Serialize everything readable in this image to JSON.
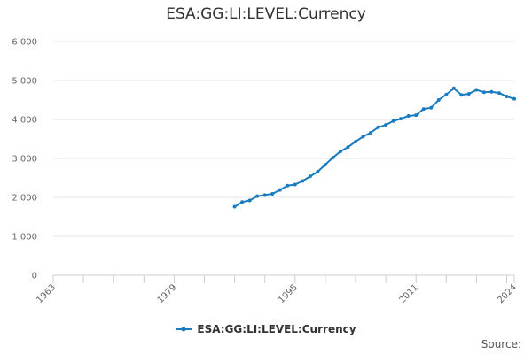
{
  "chart_data": {
    "type": "line",
    "title": "ESA:GG:LI:LEVEL:Currency",
    "xlabel": "",
    "ylabel": "",
    "xlim": [
      1963,
      2024
    ],
    "ylim": [
      0,
      6000
    ],
    "x_ticks": [
      1963,
      1979,
      1995,
      2011,
      2024
    ],
    "y_ticks": [
      0,
      1000,
      2000,
      3000,
      4000,
      5000,
      6000
    ],
    "y_tick_labels": [
      "0",
      "1 000",
      "2 000",
      "3 000",
      "4 000",
      "5 000",
      "6 000"
    ],
    "series": [
      {
        "name": "ESA:GG:LI:LEVEL:Currency",
        "color": "#1a7cc0",
        "x": [
          1987,
          1988,
          1989,
          1990,
          1991,
          1992,
          1993,
          1994,
          1995,
          1996,
          1997,
          1998,
          1999,
          2000,
          2001,
          2002,
          2003,
          2004,
          2005,
          2006,
          2007,
          2008,
          2009,
          2010,
          2011,
          2012,
          2013,
          2014,
          2015,
          2016,
          2017,
          2018,
          2019,
          2020,
          2021,
          2022,
          2023,
          2024
        ],
        "values": [
          1760,
          1880,
          1920,
          2030,
          2060,
          2090,
          2190,
          2300,
          2330,
          2420,
          2540,
          2660,
          2840,
          3020,
          3180,
          3290,
          3430,
          3560,
          3660,
          3800,
          3860,
          3960,
          4020,
          4090,
          4110,
          4270,
          4300,
          4500,
          4640,
          4800,
          4630,
          4660,
          4760,
          4700,
          4710,
          4680,
          4590,
          4530
        ]
      }
    ],
    "legend": "bottom-center",
    "grid": true
  },
  "source_label": "Source:"
}
